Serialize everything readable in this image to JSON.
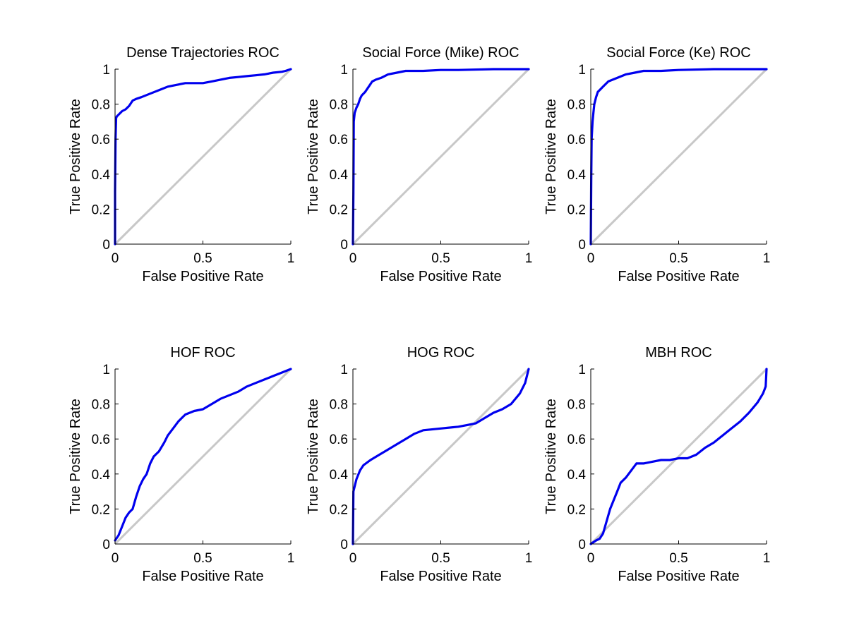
{
  "colors": {
    "roc": "#0000ee",
    "diagonal": "#c8c8c8",
    "axis": "#000000"
  },
  "chart_data": [
    {
      "type": "line",
      "title": "Dense Trajectories ROC",
      "xlabel": "False Positive Rate",
      "ylabel": "True Positive Rate",
      "xlim": [
        0,
        1
      ],
      "ylim": [
        0,
        1
      ],
      "xticks": [
        "0",
        "0.5",
        "1"
      ],
      "yticks": [
        "0",
        "0.2",
        "0.4",
        "0.6",
        "0.8",
        "1"
      ],
      "grid": false,
      "series": [
        {
          "x": [
            0,
            0,
            0.003,
            0.006,
            0.01,
            0.02,
            0.04,
            0.06,
            0.08,
            0.1,
            0.12,
            0.15,
            0.2,
            0.25,
            0.3,
            0.35,
            0.4,
            0.5,
            0.55,
            0.6,
            0.65,
            0.7,
            0.75,
            0.8,
            0.85,
            0.9,
            0.95,
            0.97,
            1
          ],
          "y": [
            0,
            0.3,
            0.6,
            0.72,
            0.73,
            0.74,
            0.76,
            0.77,
            0.79,
            0.82,
            0.83,
            0.84,
            0.86,
            0.88,
            0.9,
            0.91,
            0.92,
            0.92,
            0.93,
            0.94,
            0.95,
            0.955,
            0.96,
            0.965,
            0.97,
            0.98,
            0.985,
            0.99,
            1
          ]
        },
        {
          "x": [
            0,
            1
          ],
          "y": [
            0,
            1
          ]
        }
      ]
    },
    {
      "type": "line",
      "title": "Social Force (Mike) ROC",
      "xlabel": "False Positive Rate",
      "ylabel": "True Positive Rate",
      "xlim": [
        0,
        1
      ],
      "ylim": [
        0,
        1
      ],
      "xticks": [
        "0",
        "0.5",
        "1"
      ],
      "yticks": [
        "0",
        "0.2",
        "0.4",
        "0.6",
        "0.8",
        "1"
      ],
      "grid": false,
      "series": [
        {
          "x": [
            0,
            0.003,
            0.005,
            0.01,
            0.02,
            0.03,
            0.04,
            0.05,
            0.07,
            0.09,
            0.11,
            0.13,
            0.16,
            0.2,
            0.25,
            0.3,
            0.4,
            0.5,
            0.6,
            0.8,
            1
          ],
          "y": [
            0,
            0.3,
            0.7,
            0.75,
            0.78,
            0.8,
            0.83,
            0.85,
            0.87,
            0.9,
            0.93,
            0.94,
            0.95,
            0.97,
            0.98,
            0.99,
            0.99,
            0.995,
            0.995,
            1,
            1
          ]
        },
        {
          "x": [
            0,
            1
          ],
          "y": [
            0,
            1
          ]
        }
      ]
    },
    {
      "type": "line",
      "title": "Social Force (Ke) ROC",
      "xlabel": "False Positive Rate",
      "ylabel": "True Positive Rate",
      "xlim": [
        0,
        1
      ],
      "ylim": [
        0,
        1
      ],
      "xticks": [
        "0",
        "0.5",
        "1"
      ],
      "yticks": [
        "0",
        "0.2",
        "0.4",
        "0.6",
        "0.8",
        "1"
      ],
      "grid": false,
      "series": [
        {
          "x": [
            0,
            0.003,
            0.005,
            0.01,
            0.015,
            0.02,
            0.03,
            0.04,
            0.05,
            0.07,
            0.1,
            0.15,
            0.2,
            0.25,
            0.3,
            0.4,
            0.5,
            0.7,
            1
          ],
          "y": [
            0,
            0.4,
            0.6,
            0.7,
            0.75,
            0.8,
            0.84,
            0.87,
            0.88,
            0.9,
            0.93,
            0.95,
            0.97,
            0.98,
            0.99,
            0.99,
            0.995,
            1,
            1
          ]
        },
        {
          "x": [
            0,
            1
          ],
          "y": [
            0,
            1
          ]
        }
      ]
    },
    {
      "type": "line",
      "title": "HOF ROC",
      "xlabel": "False Positive Rate",
      "ylabel": "True Positive Rate",
      "xlim": [
        0,
        1
      ],
      "ylim": [
        0,
        1
      ],
      "xticks": [
        "0",
        "0.5",
        "1"
      ],
      "yticks": [
        "0",
        "0.2",
        "0.4",
        "0.6",
        "0.8",
        "1"
      ],
      "grid": false,
      "series": [
        {
          "x": [
            0,
            0.02,
            0.04,
            0.06,
            0.08,
            0.1,
            0.12,
            0.14,
            0.16,
            0.18,
            0.2,
            0.22,
            0.25,
            0.28,
            0.3,
            0.33,
            0.36,
            0.38,
            0.4,
            0.45,
            0.5,
            0.55,
            0.6,
            0.65,
            0.7,
            0.75,
            0.8,
            0.85,
            0.9,
            0.95,
            1
          ],
          "y": [
            0.02,
            0.05,
            0.1,
            0.15,
            0.18,
            0.2,
            0.27,
            0.33,
            0.37,
            0.4,
            0.46,
            0.5,
            0.53,
            0.58,
            0.62,
            0.66,
            0.7,
            0.72,
            0.74,
            0.76,
            0.77,
            0.8,
            0.83,
            0.85,
            0.87,
            0.9,
            0.92,
            0.94,
            0.96,
            0.98,
            1
          ]
        },
        {
          "x": [
            0,
            1
          ],
          "y": [
            0,
            1
          ]
        }
      ]
    },
    {
      "type": "line",
      "title": "HOG ROC",
      "xlabel": "False Positive Rate",
      "ylabel": "True Positive Rate",
      "xlim": [
        0,
        1
      ],
      "ylim": [
        0,
        1
      ],
      "xticks": [
        "0",
        "0.5",
        "1"
      ],
      "yticks": [
        "0",
        "0.2",
        "0.4",
        "0.6",
        "0.8",
        "1"
      ],
      "grid": false,
      "series": [
        {
          "x": [
            0,
            0.003,
            0.01,
            0.02,
            0.04,
            0.06,
            0.1,
            0.15,
            0.2,
            0.25,
            0.3,
            0.35,
            0.4,
            0.5,
            0.6,
            0.65,
            0.7,
            0.75,
            0.8,
            0.85,
            0.9,
            0.95,
            0.98,
            1
          ],
          "y": [
            0,
            0.3,
            0.33,
            0.37,
            0.42,
            0.45,
            0.48,
            0.51,
            0.54,
            0.57,
            0.6,
            0.63,
            0.65,
            0.66,
            0.67,
            0.68,
            0.69,
            0.72,
            0.75,
            0.77,
            0.8,
            0.86,
            0.92,
            1
          ]
        },
        {
          "x": [
            0,
            1
          ],
          "y": [
            0,
            1
          ]
        }
      ]
    },
    {
      "type": "line",
      "title": "MBH ROC",
      "xlabel": "False Positive Rate",
      "ylabel": "True Positive Rate",
      "xlim": [
        0,
        1
      ],
      "ylim": [
        0,
        1
      ],
      "xticks": [
        "0",
        "0.5",
        "1"
      ],
      "yticks": [
        "0",
        "0.2",
        "0.4",
        "0.6",
        "0.8",
        "1"
      ],
      "grid": false,
      "series": [
        {
          "x": [
            0,
            0.03,
            0.05,
            0.07,
            0.09,
            0.11,
            0.13,
            0.15,
            0.17,
            0.2,
            0.23,
            0.26,
            0.3,
            0.35,
            0.4,
            0.45,
            0.5,
            0.55,
            0.6,
            0.65,
            0.7,
            0.75,
            0.8,
            0.85,
            0.9,
            0.95,
            0.98,
            0.995,
            1
          ],
          "y": [
            0,
            0.02,
            0.03,
            0.06,
            0.13,
            0.2,
            0.25,
            0.3,
            0.35,
            0.38,
            0.42,
            0.46,
            0.46,
            0.47,
            0.48,
            0.48,
            0.49,
            0.49,
            0.51,
            0.55,
            0.58,
            0.62,
            0.66,
            0.7,
            0.75,
            0.81,
            0.86,
            0.9,
            1
          ]
        },
        {
          "x": [
            0,
            1
          ],
          "y": [
            0,
            1
          ]
        }
      ]
    }
  ]
}
